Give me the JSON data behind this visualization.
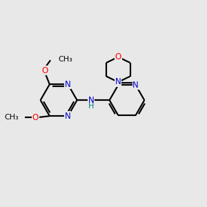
{
  "bg_color": "#e8e8e8",
  "bond_color": "#000000",
  "N_color": "#0000cd",
  "O_color": "#ff0000",
  "NH_color": "#008080",
  "lw": 1.6,
  "dbo": 0.12,
  "fs": 8.5,
  "xlim": [
    0,
    12
  ],
  "ylim": [
    0,
    10
  ]
}
